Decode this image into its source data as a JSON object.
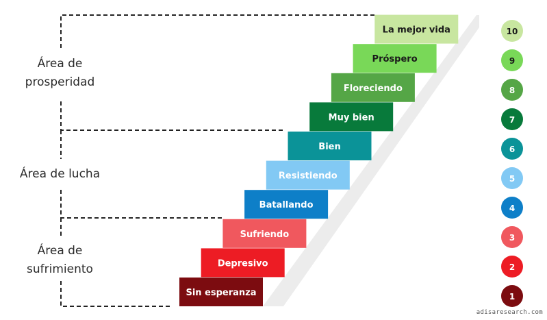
{
  "areas": {
    "prosperity": "Área de\nprosperidad",
    "struggle": "Área de lucha",
    "suffering": "Área de\nsufrimiento"
  },
  "steps": [
    {
      "level": "1",
      "label": "Sin esperanza",
      "color": "#7c0c10"
    },
    {
      "level": "2",
      "label": "Depresivo",
      "color": "#ed1c24"
    },
    {
      "level": "3",
      "label": "Sufriendo",
      "color": "#f0585e"
    },
    {
      "level": "4",
      "label": "Batallando",
      "color": "#0e7fc8"
    },
    {
      "level": "5",
      "label": "Resistiendo",
      "color": "#82c9f4"
    },
    {
      "level": "6",
      "label": "Bien",
      "color": "#0b9398"
    },
    {
      "level": "7",
      "label": "Muy bien",
      "color": "#087a3b"
    },
    {
      "level": "8",
      "label": "Floreciendo",
      "color": "#55a646"
    },
    {
      "level": "9",
      "label": "Próspero",
      "color": "#79d858"
    },
    {
      "level": "10",
      "label": "La mejor vida",
      "color": "#c8e6a0"
    }
  ],
  "watermark": "adisaresearch.com"
}
